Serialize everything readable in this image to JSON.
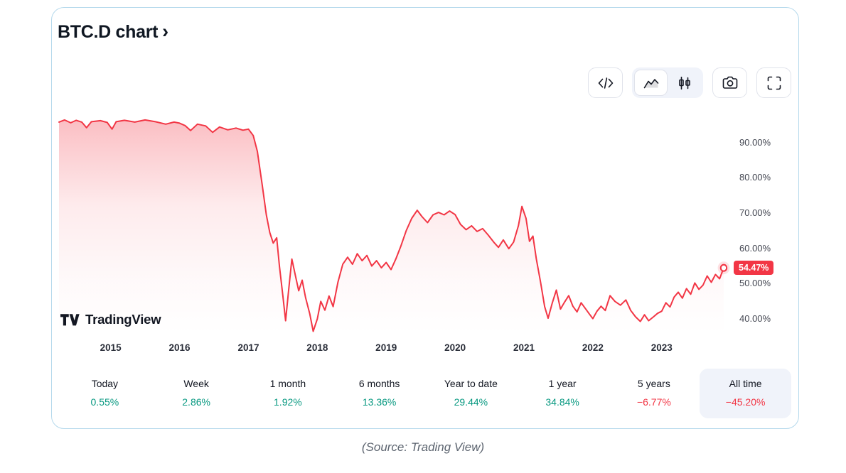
{
  "widget": {
    "title": "BTC.D chart",
    "title_arrow": "›",
    "toolbar": {
      "buttons": [
        {
          "id": "embed-code",
          "icon": "code-icon",
          "selected": false
        },
        {
          "id": "chart-type-area",
          "icon": "area-chart-icon",
          "selected": true
        },
        {
          "id": "chart-type-candles",
          "icon": "candlestick-icon",
          "selected": false
        },
        {
          "id": "snapshot",
          "icon": "camera-icon",
          "selected": false
        },
        {
          "id": "fullscreen",
          "icon": "fullscreen-icon",
          "selected": false
        }
      ]
    },
    "attribution": "TradingView"
  },
  "ranges": [
    {
      "label": "Today",
      "value": "0.55%",
      "direction": "up",
      "selected": false
    },
    {
      "label": "Week",
      "value": "2.86%",
      "direction": "up",
      "selected": false
    },
    {
      "label": "1 month",
      "value": "1.92%",
      "direction": "up",
      "selected": false
    },
    {
      "label": "6 months",
      "value": "13.36%",
      "direction": "up",
      "selected": false
    },
    {
      "label": "Year to date",
      "value": "29.44%",
      "direction": "up",
      "selected": false
    },
    {
      "label": "1 year",
      "value": "34.84%",
      "direction": "up",
      "selected": false
    },
    {
      "label": "5 years",
      "value": "−6.77%",
      "direction": "down",
      "selected": false
    },
    {
      "label": "All time",
      "value": "−45.20%",
      "direction": "down",
      "selected": true
    }
  ],
  "caption": "(Source: Trading View)",
  "colors": {
    "line": "#f23645",
    "positive": "#089981",
    "negative": "#f23645",
    "badge_bg": "#f23645",
    "card_border": "#b5d9ec",
    "selected_pill": "#f0f3fa"
  },
  "chart_data": {
    "type": "area",
    "title": "BTC.D (Bitcoin dominance %)",
    "xlabel": "",
    "ylabel": "",
    "grid": false,
    "legend_position": "none",
    "xlim": [
      2014.25,
      2023.9
    ],
    "ylim_display": [
      36,
      100
    ],
    "x_ticks": [
      2015,
      2016,
      2017,
      2018,
      2019,
      2020,
      2021,
      2022,
      2023
    ],
    "y_ticks": [
      {
        "value": 90,
        "label": "90.00%"
      },
      {
        "value": 80,
        "label": "80.00%"
      },
      {
        "value": 70,
        "label": "70.00%"
      },
      {
        "value": 60,
        "label": "60.00%"
      },
      {
        "value": 50,
        "label": "50.00%"
      },
      {
        "value": 40,
        "label": "40.00%"
      }
    ],
    "last_value": 54.47,
    "last_value_label": "54.47%",
    "series": [
      {
        "name": "BTC.D",
        "points": [
          [
            2014.25,
            95.8
          ],
          [
            2014.33,
            96.4
          ],
          [
            2014.42,
            95.6
          ],
          [
            2014.5,
            96.3
          ],
          [
            2014.58,
            95.8
          ],
          [
            2014.65,
            94.2
          ],
          [
            2014.72,
            95.9
          ],
          [
            2014.85,
            96.2
          ],
          [
            2014.95,
            95.7
          ],
          [
            2015.02,
            93.8
          ],
          [
            2015.08,
            95.9
          ],
          [
            2015.2,
            96.3
          ],
          [
            2015.35,
            95.8
          ],
          [
            2015.5,
            96.4
          ],
          [
            2015.65,
            95.9
          ],
          [
            2015.8,
            95.2
          ],
          [
            2015.92,
            95.8
          ],
          [
            2016.0,
            95.5
          ],
          [
            2016.08,
            94.8
          ],
          [
            2016.16,
            93.4
          ],
          [
            2016.26,
            95.2
          ],
          [
            2016.38,
            94.7
          ],
          [
            2016.48,
            92.9
          ],
          [
            2016.58,
            94.4
          ],
          [
            2016.7,
            93.6
          ],
          [
            2016.82,
            94.1
          ],
          [
            2016.92,
            93.5
          ],
          [
            2017.0,
            93.8
          ],
          [
            2017.07,
            92.0
          ],
          [
            2017.13,
            87.5
          ],
          [
            2017.2,
            78.0
          ],
          [
            2017.26,
            69.5
          ],
          [
            2017.31,
            64.5
          ],
          [
            2017.36,
            61.5
          ],
          [
            2017.41,
            63.0
          ],
          [
            2017.45,
            55.0
          ],
          [
            2017.5,
            46.5
          ],
          [
            2017.54,
            39.5
          ],
          [
            2017.58,
            47.5
          ],
          [
            2017.63,
            57.0
          ],
          [
            2017.68,
            52.5
          ],
          [
            2017.73,
            48.0
          ],
          [
            2017.78,
            51.0
          ],
          [
            2017.83,
            46.0
          ],
          [
            2017.89,
            41.5
          ],
          [
            2017.94,
            36.5
          ],
          [
            2018.0,
            40.0
          ],
          [
            2018.05,
            45.0
          ],
          [
            2018.11,
            42.5
          ],
          [
            2018.17,
            46.5
          ],
          [
            2018.23,
            43.5
          ],
          [
            2018.3,
            50.5
          ],
          [
            2018.37,
            55.5
          ],
          [
            2018.44,
            57.5
          ],
          [
            2018.51,
            55.5
          ],
          [
            2018.58,
            58.5
          ],
          [
            2018.65,
            56.5
          ],
          [
            2018.72,
            58.0
          ],
          [
            2018.79,
            55.0
          ],
          [
            2018.86,
            56.5
          ],
          [
            2018.93,
            54.5
          ],
          [
            2019.0,
            56.0
          ],
          [
            2019.07,
            54.0
          ],
          [
            2019.14,
            57.0
          ],
          [
            2019.21,
            60.5
          ],
          [
            2019.29,
            65.0
          ],
          [
            2019.37,
            68.5
          ],
          [
            2019.45,
            70.8
          ],
          [
            2019.52,
            69.0
          ],
          [
            2019.6,
            67.3
          ],
          [
            2019.68,
            69.5
          ],
          [
            2019.76,
            70.2
          ],
          [
            2019.84,
            69.5
          ],
          [
            2019.92,
            70.6
          ],
          [
            2020.0,
            69.6
          ],
          [
            2020.08,
            66.8
          ],
          [
            2020.16,
            65.3
          ],
          [
            2020.24,
            66.4
          ],
          [
            2020.32,
            64.8
          ],
          [
            2020.4,
            65.6
          ],
          [
            2020.48,
            63.8
          ],
          [
            2020.56,
            61.8
          ],
          [
            2020.63,
            60.3
          ],
          [
            2020.7,
            62.4
          ],
          [
            2020.78,
            59.9
          ],
          [
            2020.85,
            61.8
          ],
          [
            2020.92,
            66.5
          ],
          [
            2020.97,
            71.9
          ],
          [
            2021.03,
            68.5
          ],
          [
            2021.08,
            62.0
          ],
          [
            2021.13,
            63.5
          ],
          [
            2021.18,
            57.0
          ],
          [
            2021.24,
            50.5
          ],
          [
            2021.3,
            43.5
          ],
          [
            2021.35,
            40.2
          ],
          [
            2021.41,
            44.5
          ],
          [
            2021.47,
            48.2
          ],
          [
            2021.53,
            42.8
          ],
          [
            2021.59,
            44.8
          ],
          [
            2021.65,
            46.6
          ],
          [
            2021.71,
            43.6
          ],
          [
            2021.77,
            42.0
          ],
          [
            2021.83,
            44.6
          ],
          [
            2021.89,
            43.0
          ],
          [
            2021.95,
            41.4
          ],
          [
            2022.0,
            40.1
          ],
          [
            2022.06,
            42.2
          ],
          [
            2022.12,
            43.6
          ],
          [
            2022.18,
            42.4
          ],
          [
            2022.25,
            46.6
          ],
          [
            2022.32,
            45.0
          ],
          [
            2022.4,
            43.9
          ],
          [
            2022.48,
            45.4
          ],
          [
            2022.55,
            42.4
          ],
          [
            2022.62,
            40.6
          ],
          [
            2022.69,
            39.3
          ],
          [
            2022.75,
            41.2
          ],
          [
            2022.81,
            39.5
          ],
          [
            2022.88,
            40.6
          ],
          [
            2022.94,
            41.6
          ],
          [
            2023.0,
            42.2
          ],
          [
            2023.06,
            44.6
          ],
          [
            2023.12,
            43.4
          ],
          [
            2023.18,
            46.2
          ],
          [
            2023.24,
            47.6
          ],
          [
            2023.3,
            45.9
          ],
          [
            2023.36,
            48.6
          ],
          [
            2023.42,
            47.0
          ],
          [
            2023.48,
            50.2
          ],
          [
            2023.54,
            48.4
          ],
          [
            2023.6,
            49.6
          ],
          [
            2023.66,
            52.2
          ],
          [
            2023.72,
            50.4
          ],
          [
            2023.78,
            52.6
          ],
          [
            2023.84,
            51.4
          ],
          [
            2023.9,
            54.47
          ]
        ]
      }
    ]
  }
}
